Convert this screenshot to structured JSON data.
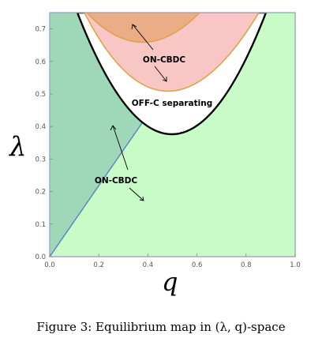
{
  "chart_data": {
    "type": "area",
    "title": "",
    "xlabel": "q",
    "ylabel": "λ",
    "xlim": [
      0,
      1
    ],
    "ylim": [
      0,
      0.75
    ],
    "x_ticks": [
      "0.0",
      "0.2",
      "0.4",
      "0.6",
      "0.8",
      "1.0"
    ],
    "y_ticks": [
      "0.0",
      "0.1",
      "0.2",
      "0.3",
      "0.4",
      "0.5",
      "0.6",
      "0.7"
    ],
    "grid": false,
    "regions": [
      {
        "label": "ON-CBDC",
        "fill": "#c9fbc9"
      },
      {
        "label": "",
        "fill": "#9fd8b8"
      },
      {
        "label": "OFF-C separating",
        "fill": "#ffffff"
      },
      {
        "label": "ON-CBDC",
        "fill": "#f9c6c6"
      },
      {
        "label": "",
        "fill": "#eaad86"
      }
    ],
    "boundaries": {
      "off_c_parabola": {
        "vertex": [
          0.5,
          0.38
        ],
        "ends_at_lambda": 0.75,
        "x_span": [
          0.12,
          0.88
        ]
      },
      "inner_parabola": {
        "vertex": [
          0.48,
          0.5
        ],
        "ends_at_lambda": 0.75,
        "x_span": [
          0.14,
          0.86
        ]
      },
      "top_parabola": {
        "vertex": [
          0.38,
          0.675
        ],
        "ends_at_lambda": 0.75,
        "x_span": [
          0.15,
          0.61
        ]
      },
      "diagonal_line": {
        "from": [
          0,
          0
        ],
        "to": [
          0.39,
          0.4
        ]
      },
      "left_curve": {
        "from": [
          0.39,
          0.4
        ],
        "to": [
          0.11,
          0.75
        ]
      }
    },
    "annotations": [
      {
        "text": "ON-CBDC",
        "at": [
          0.47,
          0.625
        ]
      },
      {
        "text": "OFF-C separating",
        "at": [
          0.5,
          0.465
        ]
      },
      {
        "text": "ON-CBDC",
        "at": [
          0.27,
          0.23
        ]
      }
    ],
    "caption": "Figure 3: Equilibrium map in (λ, q)-space"
  }
}
